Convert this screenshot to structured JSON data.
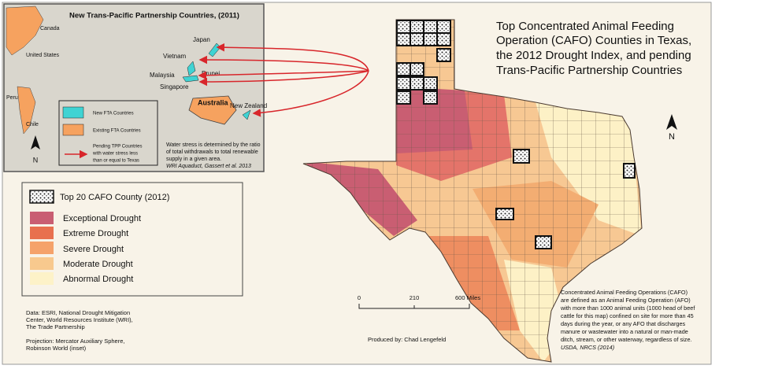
{
  "title_lines": [
    "Top Concentrated Animal Feeding",
    "Operation (CAFO) Counties in Texas,",
    "the 2012 Drought Index, and pending",
    "Trans-Pacific Partnership Countries"
  ],
  "north_label": "N",
  "inset": {
    "title": "New Trans-Pacific Partnership Countries, (2011)",
    "countries": [
      "Canada",
      "United States",
      "Peru",
      "Chile",
      "Japan",
      "Vietnam",
      "Malaysia",
      "Brunei",
      "Singapore",
      "Australia",
      "New Zealand"
    ],
    "legend": {
      "new_fta": "New FTA Countries",
      "existing_fta": "Existing FTA Countries",
      "pending_lines": [
        "Pending TPP Countries",
        "with water stress less",
        "than or equal to Texas"
      ]
    },
    "note_lines": [
      "Water stress is determined by the ratio",
      "of total withdrawals to total renewable",
      "supply in a given area."
    ],
    "note_source": "WRI Aquaduct, Gassert et al. 2013",
    "north_label": "N"
  },
  "legend": {
    "cafo": "Top 20 CAFO County (2012)",
    "classes": [
      "Exceptional Drought",
      "Extreme Drought",
      "Severe Drought",
      "Moderate Drought",
      "Abnormal Drought"
    ]
  },
  "credits": {
    "data_lines": [
      "Data: ESRI,  National Drought Mitigation",
      "Center, World Resources Institute (WRI),",
      "The Trade Partnership"
    ],
    "projection_lines": [
      "Projection: Mercator Auxiliary Sphere,",
      "Robinson World (inset)"
    ],
    "produced_by": "Produced by: Chad Lengefeld"
  },
  "scale": [
    "0",
    "210",
    "600 Miles"
  ],
  "cafo_note_lines": [
    "Concentrated Animal Feeding Operations (CAFO)",
    "are defined as an Animal Feeding Operation (AFO)",
    "with more than 1000 animal units (1000 head of beef",
    "cattle for this map) confined on site for more than 45",
    "days during the year, or any AFO that discharges",
    "manure or  wastewater into a natural or man-made",
    "ditch, stream, or other waterway, regardless of size."
  ],
  "cafo_note_source": "USDA, NRCS (2014)"
}
